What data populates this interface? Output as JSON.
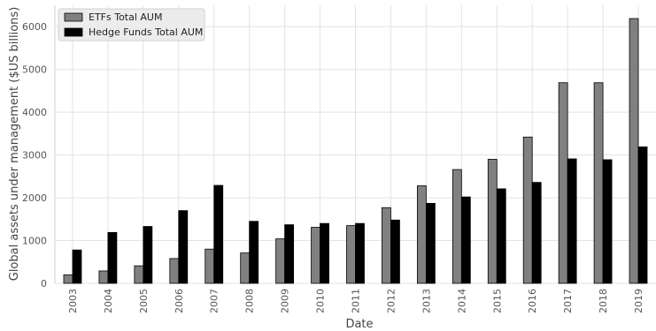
{
  "chart_data": {
    "type": "bar",
    "title": "",
    "xlabel": "Date",
    "ylabel": "Global assets under management ($US billions)",
    "categories": [
      "2003",
      "2004",
      "2005",
      "2006",
      "2007",
      "2008",
      "2009",
      "2010",
      "2011",
      "2012",
      "2013",
      "2014",
      "2015",
      "2016",
      "2017",
      "2018",
      "2019"
    ],
    "series": [
      {
        "name": "ETFs Total AUM",
        "color": "#808080",
        "values": [
          200,
          290,
          410,
          580,
          800,
          710,
          1040,
          1310,
          1350,
          1770,
          2280,
          2660,
          2900,
          3420,
          4690,
          4690,
          6190
        ]
      },
      {
        "name": "Hedge Funds Total AUM",
        "color": "#000000",
        "values": [
          780,
          1190,
          1330,
          1700,
          2290,
          1450,
          1370,
          1400,
          1400,
          1480,
          1870,
          2020,
          2210,
          2360,
          2910,
          2890,
          3190
        ]
      }
    ],
    "yticks": [
      0,
      1000,
      2000,
      3000,
      4000,
      5000,
      6000
    ],
    "ylim": [
      0,
      6500
    ],
    "grid": true,
    "legend": "top-left"
  }
}
